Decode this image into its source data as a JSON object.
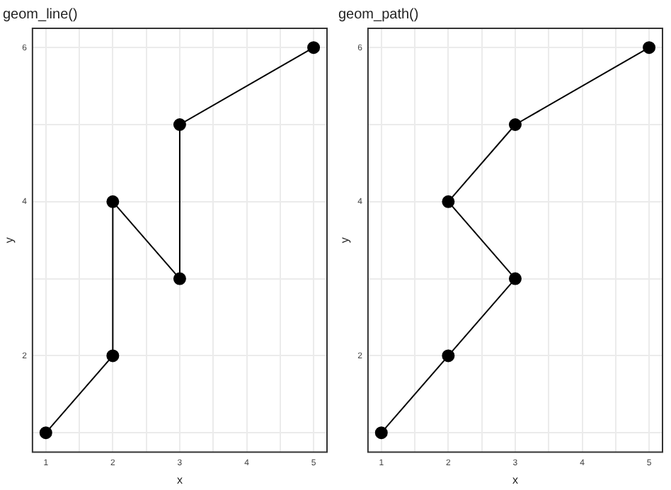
{
  "chart_data": [
    {
      "type": "line",
      "title": "geom_line()",
      "xlabel": "x",
      "ylabel": "y",
      "x": [
        1,
        2,
        2,
        3,
        3,
        5
      ],
      "series": [
        {
          "color": "#000000",
          "values": [
            1,
            2,
            4,
            3,
            5,
            6
          ]
        }
      ],
      "xlim": [
        0.8,
        5.2
      ],
      "ylim": [
        0.75,
        6.25
      ],
      "xticks": [
        1,
        {
          "value": 1.5,
          "label": null
        },
        2,
        {
          "value": 2.5,
          "label": null
        },
        3,
        {
          "value": 3.5,
          "label": null
        },
        4,
        {
          "value": 4.5,
          "label": null
        },
        5
      ],
      "yticks": [
        {
          "value": 1,
          "label": null
        },
        2,
        {
          "value": 3,
          "label": null
        },
        4,
        {
          "value": 5,
          "label": null
        },
        6
      ],
      "grid": true,
      "marker": "circle",
      "line_style": "solid",
      "legend": false
    },
    {
      "type": "line",
      "title": "geom_path()",
      "xlabel": "x",
      "ylabel": "y",
      "x": [
        1,
        2,
        3,
        2,
        3,
        5
      ],
      "series": [
        {
          "color": "#000000",
          "values": [
            1,
            2,
            3,
            4,
            5,
            6
          ]
        }
      ],
      "xlim": [
        0.8,
        5.2
      ],
      "ylim": [
        0.75,
        6.25
      ],
      "xticks": [
        1,
        {
          "value": 1.5,
          "label": null
        },
        2,
        {
          "value": 2.5,
          "label": null
        },
        3,
        {
          "value": 3.5,
          "label": null
        },
        4,
        {
          "value": 4.5,
          "label": null
        },
        5
      ],
      "yticks": [
        {
          "value": 1,
          "label": null
        },
        2,
        {
          "value": 3,
          "label": null
        },
        4,
        {
          "value": 5,
          "label": null
        },
        6
      ],
      "grid": true,
      "marker": "circle",
      "line_style": "solid",
      "legend": false
    }
  ]
}
